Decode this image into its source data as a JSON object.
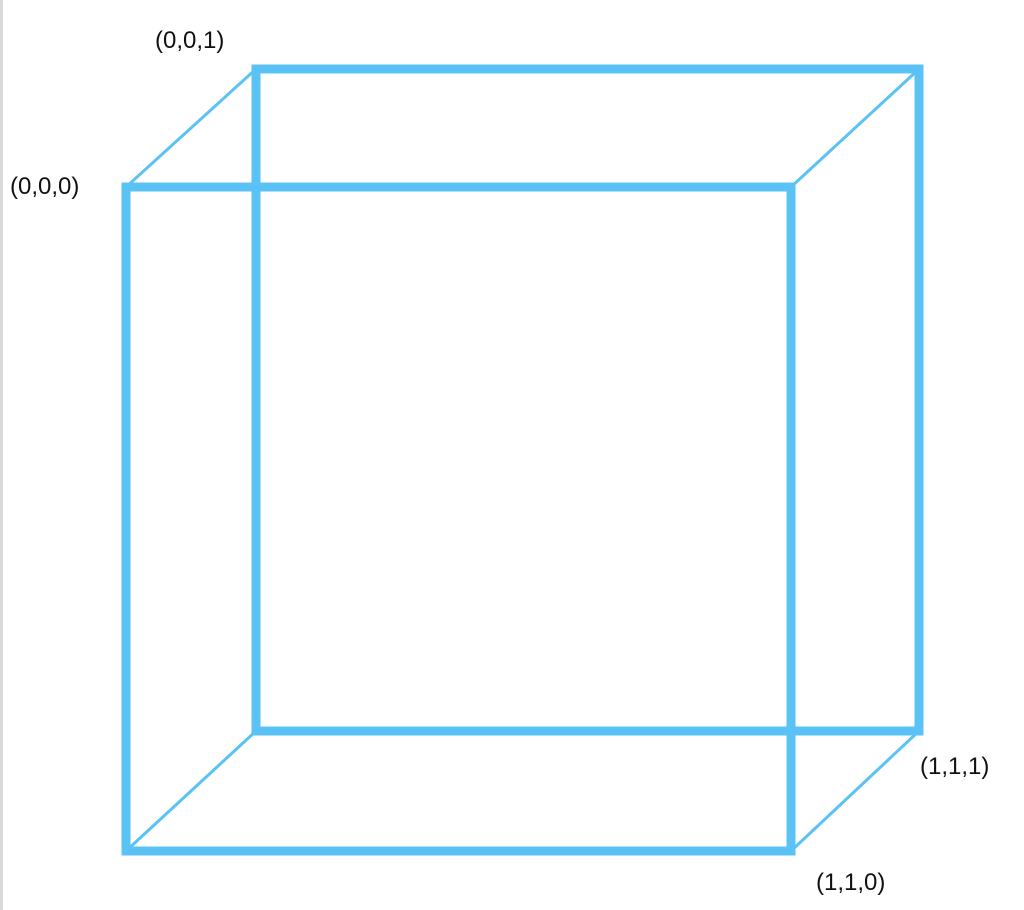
{
  "diagram": {
    "type": "wireframe-cube",
    "edge_color": "#5bc2f5",
    "labels": {
      "v000": "(0,0,0)",
      "v001": "(0,0,1)",
      "v110": "(1,1,0)",
      "v111": "(1,1,1)"
    }
  }
}
